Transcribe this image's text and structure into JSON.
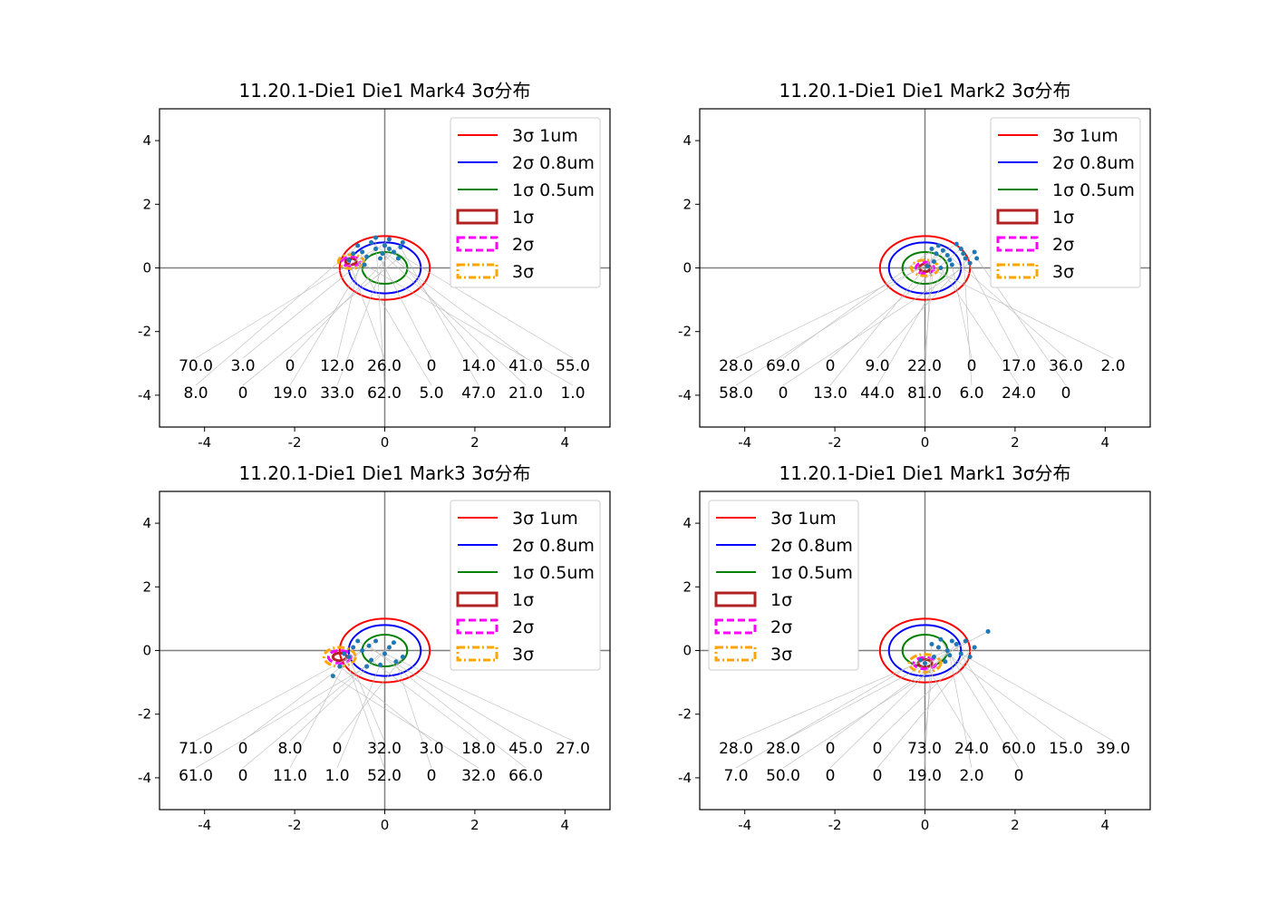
{
  "chart_data": [
    {
      "type": "scatter",
      "title": "11.20.1-Die1 Die1 Mark4 3σ分布",
      "xlim": [
        -5,
        5
      ],
      "ylim": [
        -5,
        5
      ],
      "xticks": [
        "-4",
        "-2",
        "0",
        "2",
        "4"
      ],
      "yticks": [
        "-4",
        "-2",
        "0",
        "2",
        "4"
      ],
      "legend_position": "top-right",
      "points": [
        [
          -0.2,
          0.6,
          "70.0"
        ],
        [
          0.1,
          0.9,
          "3.0"
        ],
        [
          0.4,
          0.8,
          "0"
        ],
        [
          -0.5,
          0.5,
          "12.0"
        ],
        [
          -0.8,
          0.25,
          "26.0"
        ],
        [
          -0.1,
          0.3,
          "0"
        ],
        [
          0.2,
          0.5,
          "14.0"
        ],
        [
          -0.3,
          0.8,
          "41.0"
        ],
        [
          0.0,
          0.7,
          "55.0"
        ],
        [
          -0.6,
          0.7,
          "8.0"
        ],
        [
          0.3,
          0.3,
          "0"
        ],
        [
          -0.4,
          0.35,
          "19.0"
        ],
        [
          0.1,
          0.6,
          "33.0"
        ],
        [
          -0.2,
          0.95,
          "62.0"
        ],
        [
          -0.7,
          0.45,
          "5.0"
        ],
        [
          0.35,
          0.65,
          "47.0"
        ],
        [
          -0.05,
          0.45,
          "21.0"
        ],
        [
          -0.45,
          0.1,
          "1.0"
        ]
      ],
      "sigma": {
        "center": [
          -0.75,
          0.2
        ],
        "radii": [
          [
            0.12,
            0.1
          ],
          [
            0.2,
            0.15
          ],
          [
            0.28,
            0.22
          ]
        ]
      }
    },
    {
      "type": "scatter",
      "title": "11.20.1-Die1 Die1 Mark2 3σ分布",
      "xlim": [
        -5,
        5
      ],
      "ylim": [
        -5,
        5
      ],
      "xticks": [
        "-4",
        "-2",
        "0",
        "2",
        "4"
      ],
      "yticks": [
        "-4",
        "-2",
        "0",
        "2",
        "4"
      ],
      "legend_position": "top-right",
      "points": [
        [
          0.5,
          0.4,
          "28.0"
        ],
        [
          0.3,
          0.7,
          "69.0"
        ],
        [
          0.8,
          0.6,
          "0"
        ],
        [
          1.1,
          0.5,
          "9.0"
        ],
        [
          0.2,
          0.2,
          "22.0"
        ],
        [
          0.6,
          0.1,
          "0"
        ],
        [
          0.9,
          0.3,
          "17.0"
        ],
        [
          0.4,
          0.55,
          "36.0"
        ],
        [
          0.05,
          0.05,
          "2.0"
        ],
        [
          0.7,
          0.75,
          "58.0"
        ],
        [
          1.0,
          0.15,
          "0"
        ],
        [
          0.25,
          0.45,
          "13.0"
        ],
        [
          0.55,
          0.25,
          "44.0"
        ],
        [
          0.15,
          0.6,
          "81.0"
        ],
        [
          0.85,
          0.45,
          "6.0"
        ],
        [
          0.35,
          0.0,
          "24.0"
        ],
        [
          1.15,
          0.3,
          "0"
        ]
      ],
      "sigma": {
        "center": [
          0.0,
          0.0
        ],
        "radii": [
          [
            0.12,
            0.12
          ],
          [
            0.2,
            0.18
          ],
          [
            0.3,
            0.25
          ]
        ]
      }
    },
    {
      "type": "scatter",
      "title": "11.20.1-Die1 Die1 Mark3 3σ分布",
      "xlim": [
        -5,
        5
      ],
      "ylim": [
        -5,
        5
      ],
      "xticks": [
        "-4",
        "-2",
        "0",
        "2",
        "4"
      ],
      "yticks": [
        "-4",
        "-2",
        "0",
        "2",
        "4"
      ],
      "legend_position": "top-right",
      "points": [
        [
          -0.5,
          0.0,
          "71.0"
        ],
        [
          -0.2,
          0.3,
          "0"
        ],
        [
          0.1,
          0.1,
          "8.0"
        ],
        [
          0.4,
          -0.2,
          "0"
        ],
        [
          -0.8,
          -0.2,
          "32.0"
        ],
        [
          -1.0,
          -0.5,
          "3.0"
        ],
        [
          -0.3,
          -0.3,
          "18.0"
        ],
        [
          -0.6,
          0.3,
          "45.0"
        ],
        [
          0.0,
          -0.1,
          "27.0"
        ],
        [
          -0.4,
          -0.5,
          "61.0"
        ],
        [
          0.2,
          0.25,
          "0"
        ],
        [
          -0.7,
          0.1,
          "11.0"
        ],
        [
          -0.1,
          -0.45,
          "1.0"
        ],
        [
          -0.9,
          -0.1,
          "52.0"
        ],
        [
          0.25,
          -0.35,
          "0"
        ],
        [
          -1.15,
          -0.8,
          "32.0"
        ],
        [
          -0.35,
          0.15,
          "66.0"
        ]
      ],
      "sigma": {
        "center": [
          -1.0,
          -0.2
        ],
        "radii": [
          [
            0.15,
            0.12
          ],
          [
            0.25,
            0.2
          ],
          [
            0.35,
            0.3
          ]
        ]
      }
    },
    {
      "type": "scatter",
      "title": "11.20.1-Die1 Die1 Mark1 3σ分布",
      "xlim": [
        -5,
        5
      ],
      "ylim": [
        -5,
        5
      ],
      "xticks": [
        "-4",
        "-2",
        "0",
        "2",
        "4"
      ],
      "yticks": [
        "-4",
        "-2",
        "0",
        "2",
        "4"
      ],
      "legend_position": "top-left",
      "points": [
        [
          0.5,
          0.0,
          "28.0"
        ],
        [
          1.4,
          0.6,
          "28.0"
        ],
        [
          0.9,
          0.3,
          "0"
        ],
        [
          1.1,
          0.1,
          "0"
        ],
        [
          0.2,
          -0.2,
          "73.0"
        ],
        [
          0.0,
          -0.4,
          "24.0"
        ],
        [
          0.6,
          0.3,
          "60.0"
        ],
        [
          0.3,
          0.1,
          "15.0"
        ],
        [
          0.8,
          -0.1,
          "39.0"
        ],
        [
          -0.1,
          -0.3,
          "7.0"
        ],
        [
          0.45,
          -0.35,
          "50.0"
        ],
        [
          0.7,
          0.2,
          "0"
        ],
        [
          1.0,
          -0.2,
          "0"
        ],
        [
          0.15,
          0.2,
          "19.0"
        ],
        [
          0.55,
          -0.15,
          "2.0"
        ],
        [
          0.35,
          0.35,
          "0"
        ]
      ],
      "sigma": {
        "center": [
          0.0,
          -0.4
        ],
        "radii": [
          [
            0.15,
            0.12
          ],
          [
            0.25,
            0.18
          ],
          [
            0.35,
            0.28
          ]
        ]
      }
    }
  ],
  "legend": [
    "3σ 1um",
    "2σ 0.8um",
    "1σ 0.5um",
    "1σ",
    "2σ",
    "3σ"
  ],
  "circles": {
    "radii": [
      1,
      0.8,
      0.5
    ],
    "colors": [
      "#ff0000",
      "#0000ff",
      "#008000"
    ]
  },
  "sigma_colors": [
    "#b22222",
    "#ff00ff",
    "#ffa500"
  ],
  "point_color": "#1f77b4"
}
